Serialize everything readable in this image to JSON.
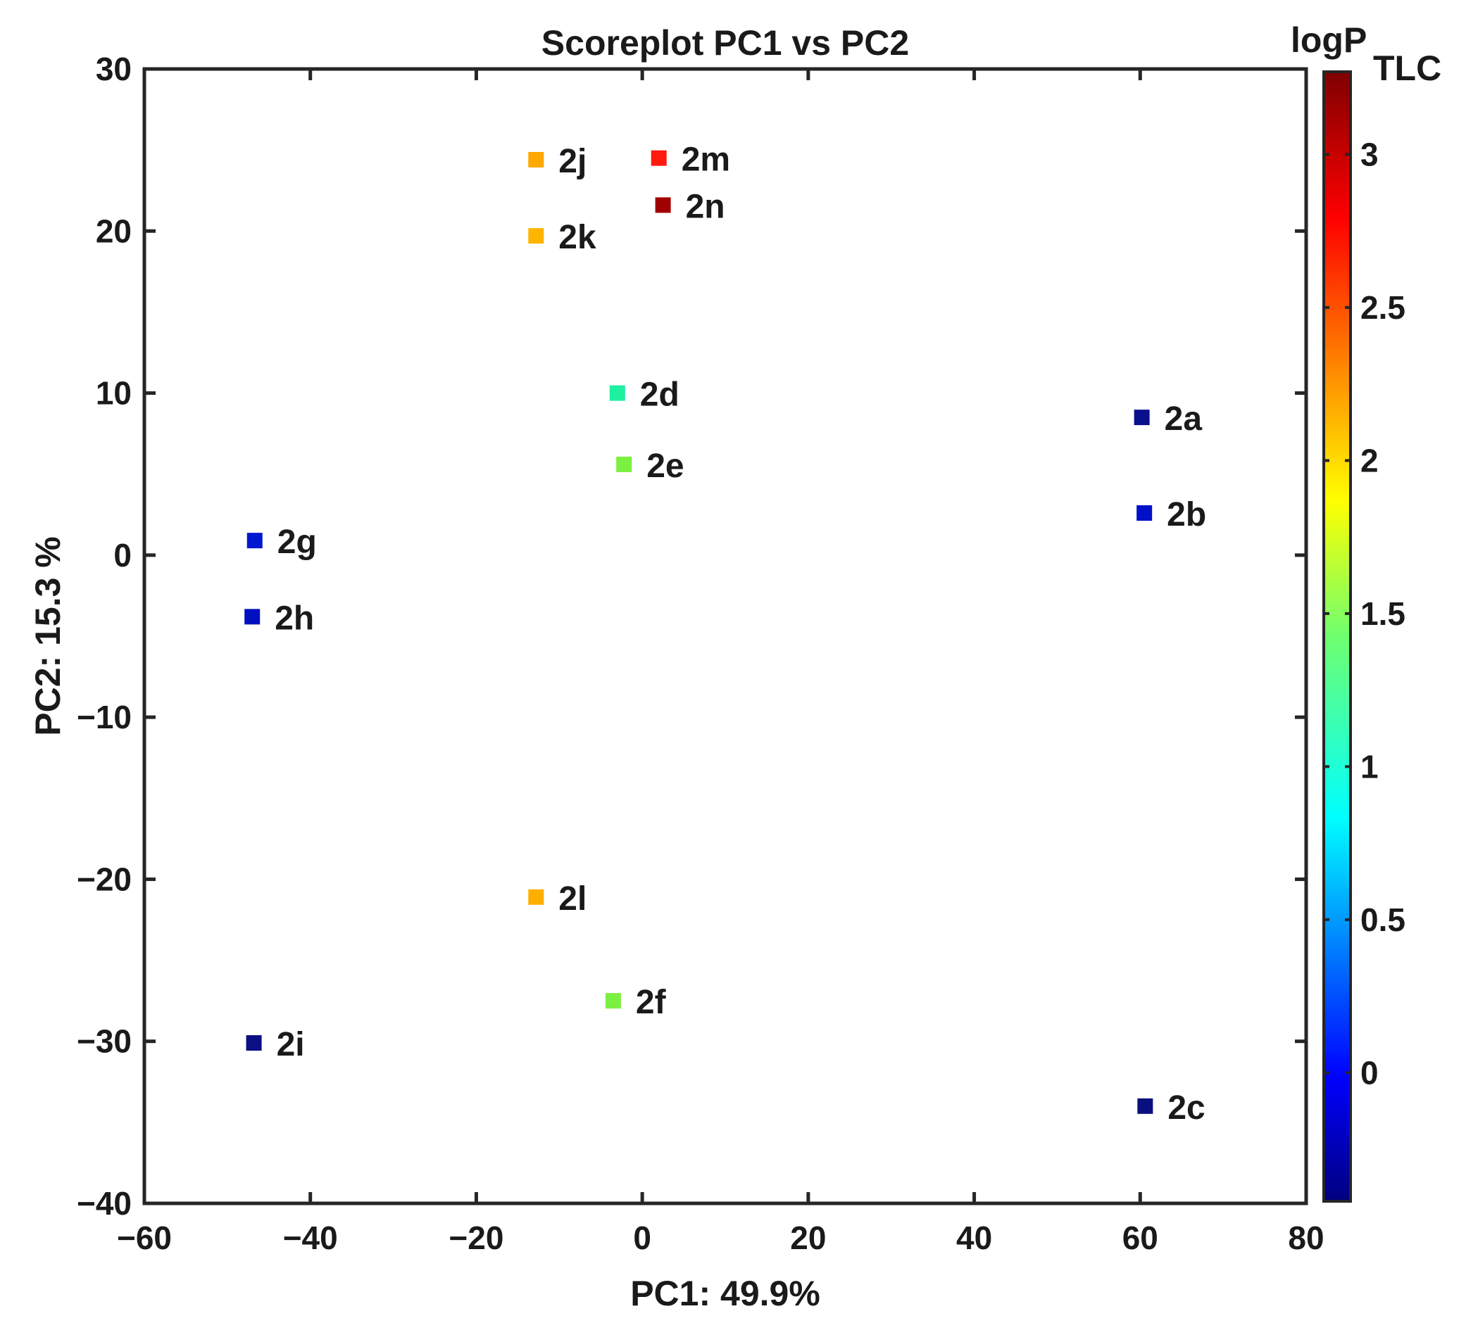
{
  "chart_data": {
    "type": "scatter",
    "title": "Scoreplot PC1 vs PC2",
    "xlabel": "PC1: 49.9%",
    "ylabel": "PC2: 15.3 %",
    "xlim": [
      -60,
      80
    ],
    "ylim": [
      -40,
      30
    ],
    "xticks": [
      -60,
      -40,
      -20,
      0,
      20,
      40,
      60,
      80
    ],
    "yticks": [
      -40,
      -30,
      -20,
      -10,
      0,
      10,
      20,
      30
    ],
    "xtick_labels": [
      "−60",
      "−40",
      "−20",
      "0",
      "20",
      "40",
      "60",
      "80"
    ],
    "ytick_labels": [
      "−40",
      "−30",
      "−20",
      "−10",
      "0",
      "10",
      "20",
      "30"
    ],
    "marker": "square",
    "colorbar": {
      "title_main": "logP",
      "title_sub": "TLC",
      "range": [
        -0.42,
        3.27
      ],
      "ticks": [
        0,
        0.5,
        1,
        1.5,
        2,
        2.5,
        3
      ],
      "tick_labels": [
        "0",
        "0.5",
        "1",
        "1.5",
        "2",
        "2.5",
        "3"
      ],
      "colormap": "jet"
    },
    "points": [
      {
        "label": "2a",
        "x": 60.2,
        "y": 8.5,
        "logP": -0.3,
        "color": "#0a0f8c"
      },
      {
        "label": "2b",
        "x": 60.5,
        "y": 2.6,
        "logP": -0.05,
        "color": "#0010c8"
      },
      {
        "label": "2c",
        "x": 60.6,
        "y": -34.0,
        "logP": -0.38,
        "color": "#0a0f80"
      },
      {
        "label": "2d",
        "x": -3.0,
        "y": 10.0,
        "logP": 1.35,
        "color": "#1ef0a0"
      },
      {
        "label": "2e",
        "x": -2.2,
        "y": 5.6,
        "logP": 1.65,
        "color": "#7cf040"
      },
      {
        "label": "2f",
        "x": -3.5,
        "y": -27.5,
        "logP": 1.65,
        "color": "#7cf040"
      },
      {
        "label": "2g",
        "x": -46.7,
        "y": 0.9,
        "logP": 0.0,
        "color": "#0018d0"
      },
      {
        "label": "2h",
        "x": -47.0,
        "y": -3.8,
        "logP": -0.05,
        "color": "#0010c0"
      },
      {
        "label": "2i",
        "x": -46.8,
        "y": -30.1,
        "logP": -0.35,
        "color": "#0a0f84"
      },
      {
        "label": "2j",
        "x": -12.8,
        "y": 24.4,
        "logP": 2.05,
        "color": "#ffa800"
      },
      {
        "label": "2k",
        "x": -12.8,
        "y": 19.7,
        "logP": 2.0,
        "color": "#ffb400"
      },
      {
        "label": "2l",
        "x": -12.8,
        "y": -21.1,
        "logP": 2.0,
        "color": "#ffae00"
      },
      {
        "label": "2m",
        "x": 2.0,
        "y": 24.5,
        "logP": 3.0,
        "color": "#ff1a10"
      },
      {
        "label": "2n",
        "x": 2.5,
        "y": 21.6,
        "logP": 3.25,
        "color": "#a00000"
      }
    ]
  }
}
